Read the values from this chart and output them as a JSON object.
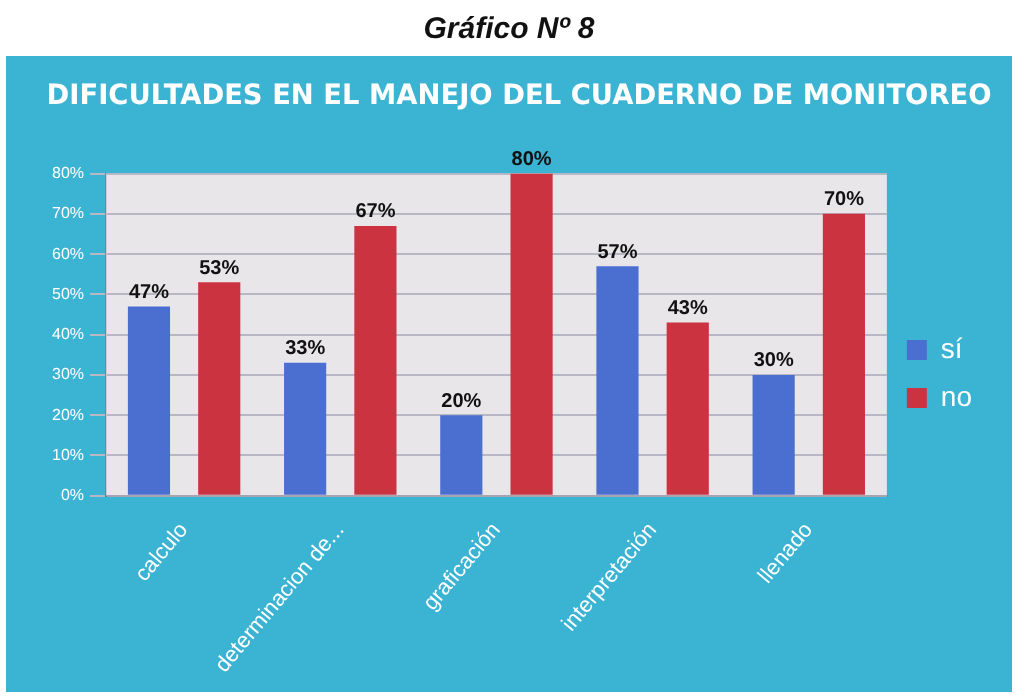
{
  "chart_data": {
    "type": "bar",
    "title": "DIFICULTADES EN EL MANEJO DEL CUADERNO DE MONITOREO",
    "annotations": [
      "Gráfico Nº 8"
    ],
    "categories": [
      "calculo",
      "determinacion de...",
      "graficación",
      "interpretación",
      "llenado"
    ],
    "series": [
      {
        "name": "sí",
        "color": "#4a6fd0",
        "values": [
          47,
          33,
          20,
          57,
          30
        ],
        "value_labels": [
          "47%",
          "33%",
          "20%",
          "57%",
          "30%"
        ]
      },
      {
        "name": "no",
        "color": "#cc3340",
        "values": [
          53,
          67,
          80,
          43,
          70
        ],
        "value_labels": [
          "53%",
          "67%",
          "80%",
          "43%",
          "70%"
        ]
      }
    ],
    "ylim": [
      0,
      80
    ],
    "yticks": [
      {
        "value": 0,
        "label": "0%"
      },
      {
        "value": 10,
        "label": "10%"
      },
      {
        "value": 20,
        "label": "20%"
      },
      {
        "value": 30,
        "label": "30%"
      },
      {
        "value": 40,
        "label": "40%"
      },
      {
        "value": 50,
        "label": "50%"
      },
      {
        "value": 60,
        "label": "60%"
      },
      {
        "value": 70,
        "label": "70%"
      },
      {
        "value": 80,
        "label": "80%"
      }
    ],
    "grid": "y",
    "legend": "right"
  }
}
